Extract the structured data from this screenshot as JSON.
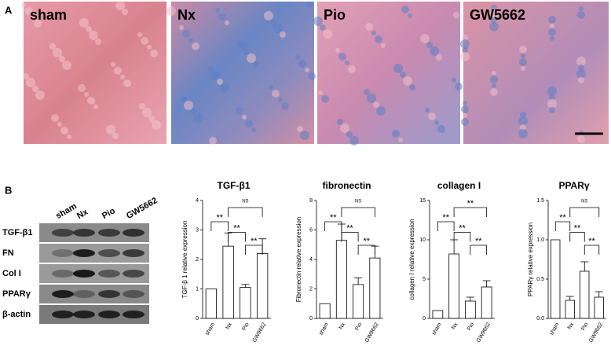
{
  "panel_a": {
    "label": "A",
    "images": [
      "sham",
      "Nx",
      "Pio",
      "GW5662"
    ]
  },
  "panel_b": {
    "label": "B",
    "blot": {
      "lanes": [
        "sham",
        "Nx",
        "Pio",
        "GW5662"
      ],
      "rows": [
        "TGF-β1",
        "FN",
        "Col I",
        "PPARγ",
        "β-actin"
      ]
    }
  },
  "chart_data": [
    {
      "type": "bar",
      "title": "TGF-β1",
      "y_label": "TGF-β 1 relative expression",
      "categories": [
        "sham",
        "Nx",
        "Pio",
        "GW9662"
      ],
      "values": [
        1,
        2.45,
        1.05,
        2.2
      ],
      "errors": [
        0,
        0.45,
        0.1,
        0.5
      ],
      "color": "#ffffff",
      "ylim": [
        0,
        4
      ],
      "yticks": [
        0,
        1,
        2,
        3,
        4
      ],
      "annotations": [
        "**",
        "**",
        "**",
        "NS"
      ]
    },
    {
      "type": "bar",
      "title": "fibronectin",
      "y_label": "Fibronectin  relative expression",
      "categories": [
        "sham",
        "Nx",
        "Pio",
        "GW9662"
      ],
      "values": [
        1,
        5.3,
        2.3,
        4.1
      ],
      "errors": [
        0,
        1.1,
        0.45,
        0.8
      ],
      "color": "#ffffff",
      "ylim": [
        0,
        8
      ],
      "yticks": [
        0,
        2,
        4,
        6,
        8
      ],
      "annotations": [
        "**",
        "**",
        "**",
        "NS"
      ]
    },
    {
      "type": "bar",
      "title": "collagen I",
      "y_label": "collagen I relative expression",
      "categories": [
        "sham",
        "Nx",
        "Pio",
        "GW9662"
      ],
      "values": [
        1,
        8.2,
        2.2,
        4.0
      ],
      "errors": [
        0,
        1.8,
        0.5,
        0.8
      ],
      "color": "#ffffff",
      "ylim": [
        0,
        15
      ],
      "yticks": [
        0,
        5,
        10,
        15
      ],
      "annotations": [
        "**",
        "**",
        "**",
        "**"
      ]
    },
    {
      "type": "bar",
      "title": "PPARγ",
      "y_label": "PPARγ  relative expression",
      "categories": [
        "sham",
        "Nx",
        "Pio",
        "GW9662"
      ],
      "values": [
        1,
        0.23,
        0.6,
        0.27
      ],
      "errors": [
        0,
        0.05,
        0.12,
        0.07
      ],
      "color": "#ffffff",
      "ylim": [
        0,
        1.5
      ],
      "yticks": [
        {
          "value": 0,
          "label": "0.0"
        },
        {
          "value": 0.5,
          "label": "0.5"
        },
        {
          "value": 1,
          "label": "1.0"
        },
        {
          "value": 1.5,
          "label": "1.5"
        }
      ],
      "annotations": [
        "**",
        "**",
        "**",
        "NS"
      ]
    }
  ]
}
